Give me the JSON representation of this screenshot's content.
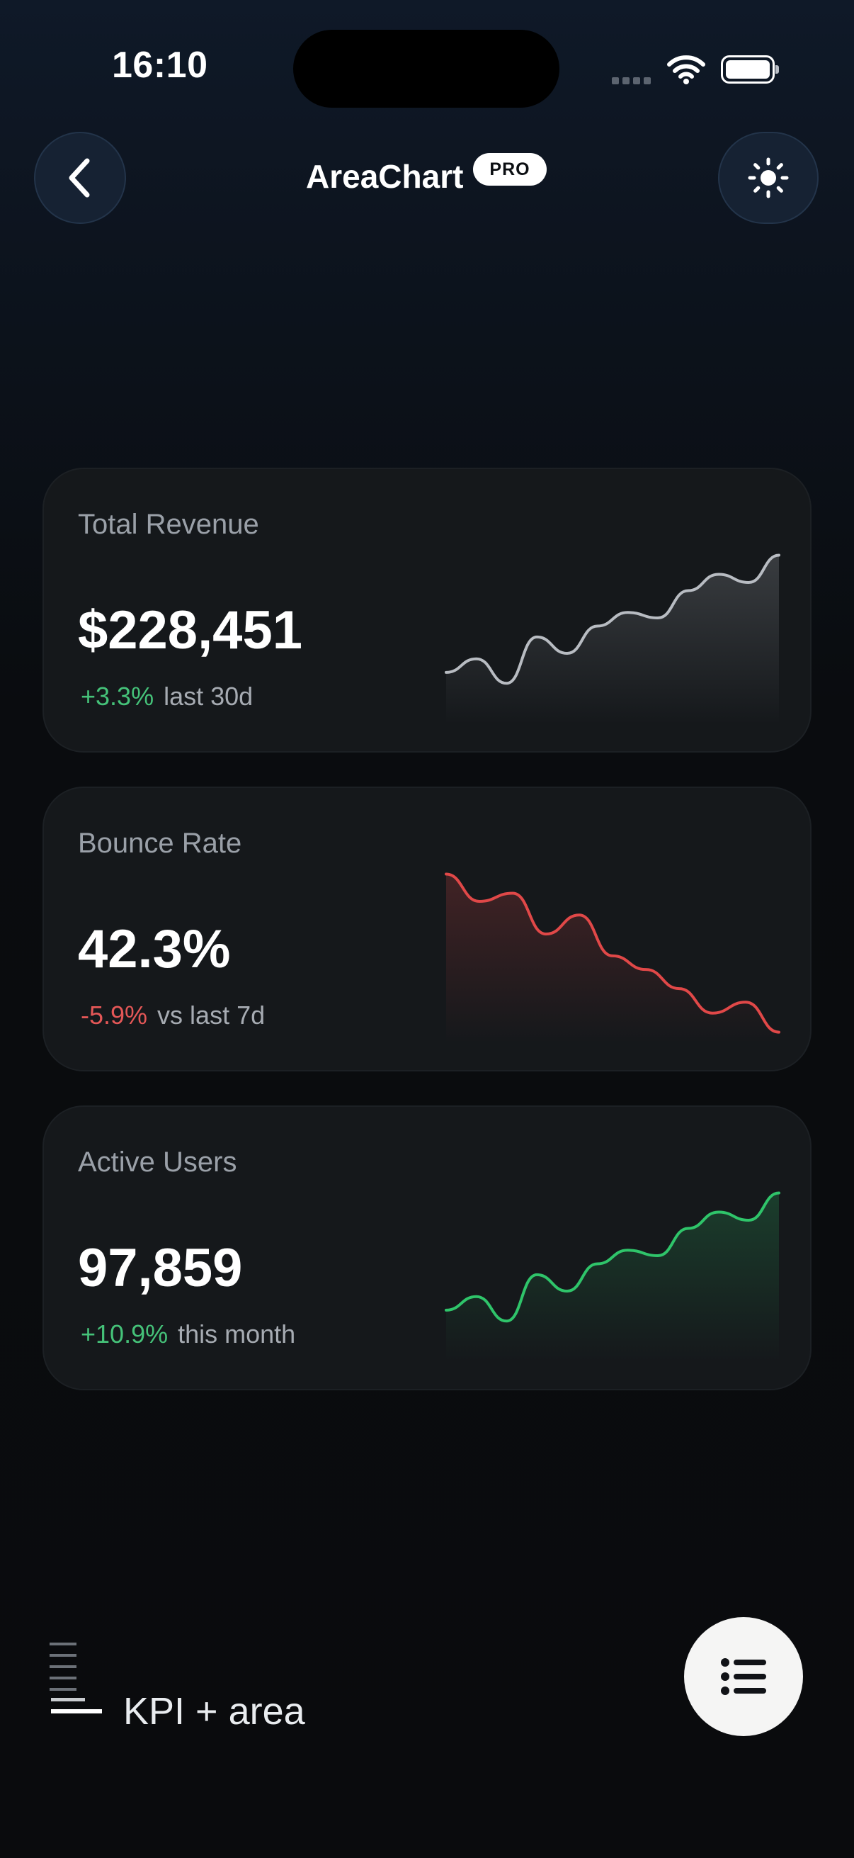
{
  "status_bar": {
    "time": "16:10"
  },
  "header": {
    "title": "AreaChart",
    "badge": "PRO"
  },
  "cards": [
    {
      "label": "Total Revenue",
      "value": "$228,451",
      "delta": "+3.3%",
      "delta_context": "last 30d",
      "trend": "up",
      "color": "#b8bcc2",
      "spark": [
        38,
        48,
        30,
        64,
        52,
        72,
        82,
        78,
        98,
        110,
        104,
        124
      ]
    },
    {
      "label": "Bounce Rate",
      "value": "42.3%",
      "delta": "-5.9%",
      "delta_context": "vs last 7d",
      "trend": "down",
      "color": "#e04848",
      "spark": [
        124,
        104,
        110,
        80,
        94,
        64,
        54,
        40,
        22,
        30,
        8
      ]
    },
    {
      "label": "Active Users",
      "value": "97,859",
      "delta": "+10.9%",
      "delta_context": "this month",
      "trend": "up",
      "color": "#2fc46a",
      "spark": [
        38,
        48,
        30,
        64,
        52,
        72,
        82,
        78,
        98,
        110,
        104,
        124
      ]
    }
  ],
  "footer": {
    "legend_label": "KPI + area"
  },
  "icons": {
    "back": "chevron-left-icon",
    "theme": "sun-icon",
    "menu": "list-icon",
    "legend": "bars-legend-icon"
  }
}
